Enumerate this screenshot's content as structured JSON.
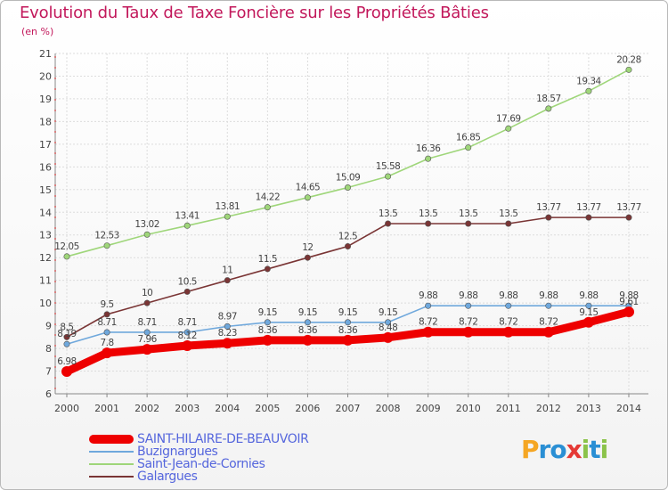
{
  "title": "Evolution du Taux de Taxe Foncière sur les Propriétés Bâties",
  "subtitle": "(en %)",
  "logo": {
    "letters": [
      "P",
      "r",
      "o",
      "x",
      "i",
      "t",
      "i"
    ],
    "colors": [
      "#f5a623",
      "#2a8fd4",
      "#2a8fd4",
      "#e53935",
      "#8bc34a",
      "#2a8fd4",
      "#8bc34a"
    ]
  },
  "chart_data": {
    "type": "line",
    "x": [
      2000,
      2001,
      2002,
      2003,
      2004,
      2005,
      2006,
      2007,
      2008,
      2009,
      2010,
      2011,
      2012,
      2013,
      2014
    ],
    "ylim": [
      6,
      21
    ],
    "yticks": [
      6,
      7,
      8,
      9,
      10,
      11,
      12,
      13,
      14,
      15,
      16,
      17,
      18,
      19,
      20,
      21
    ],
    "grid": true,
    "legend": "bottom-left",
    "series": [
      {
        "name": "SAINT-HILAIRE-DE-BEAUVOIR",
        "color": "#ee0000",
        "labels": [
          "6.98",
          "7.8",
          "7.96",
          "8.12",
          "8.23",
          "8.36",
          "8.36",
          "8.36",
          "8.48",
          "8.72",
          "8.72",
          "8.72",
          "8.72",
          "9.15",
          "9.61"
        ],
        "values": [
          6.98,
          7.8,
          7.96,
          8.12,
          8.23,
          8.36,
          8.36,
          8.36,
          8.48,
          8.72,
          8.72,
          8.72,
          8.72,
          9.15,
          9.61
        ]
      },
      {
        "name": "Buzignargues",
        "color": "#6fa8dc",
        "labels": [
          "8.19",
          "8.71",
          "8.71",
          "8.71",
          "8.97",
          "9.15",
          "9.15",
          "9.15",
          "9.15",
          "9.88",
          "9.88",
          "9.88",
          "9.88",
          "9.88",
          "9.88"
        ],
        "values": [
          8.19,
          8.71,
          8.71,
          8.71,
          8.97,
          9.15,
          9.15,
          9.15,
          9.15,
          9.88,
          9.88,
          9.88,
          9.88,
          9.88,
          9.88
        ]
      },
      {
        "name": "Saint-Jean-de-Cornies",
        "color": "#9fd67a",
        "labels": [
          "12.05",
          "12.53",
          "13.02",
          "13.41",
          "13.81",
          "14.22",
          "14.65",
          "15.09",
          "15.58",
          "16.36",
          "16.85",
          "17.69",
          "18.57",
          "19.34",
          "20.28"
        ],
        "values": [
          12.05,
          12.53,
          13.02,
          13.41,
          13.81,
          14.22,
          14.65,
          15.09,
          15.58,
          16.36,
          16.85,
          17.69,
          18.57,
          19.34,
          20.28
        ]
      },
      {
        "name": "Galargues",
        "color": "#7a3535",
        "labels": [
          "8.5",
          "9.5",
          "10",
          "10.5",
          "11",
          "11.5",
          "12",
          "12.5",
          "13.5",
          "13.5",
          "13.5",
          "13.5",
          "13.77",
          "13.77",
          "13.77"
        ],
        "values": [
          8.5,
          9.5,
          10,
          10.5,
          11,
          11.5,
          12,
          12.5,
          13.5,
          13.5,
          13.5,
          13.5,
          13.77,
          13.77,
          13.77
        ]
      }
    ]
  }
}
